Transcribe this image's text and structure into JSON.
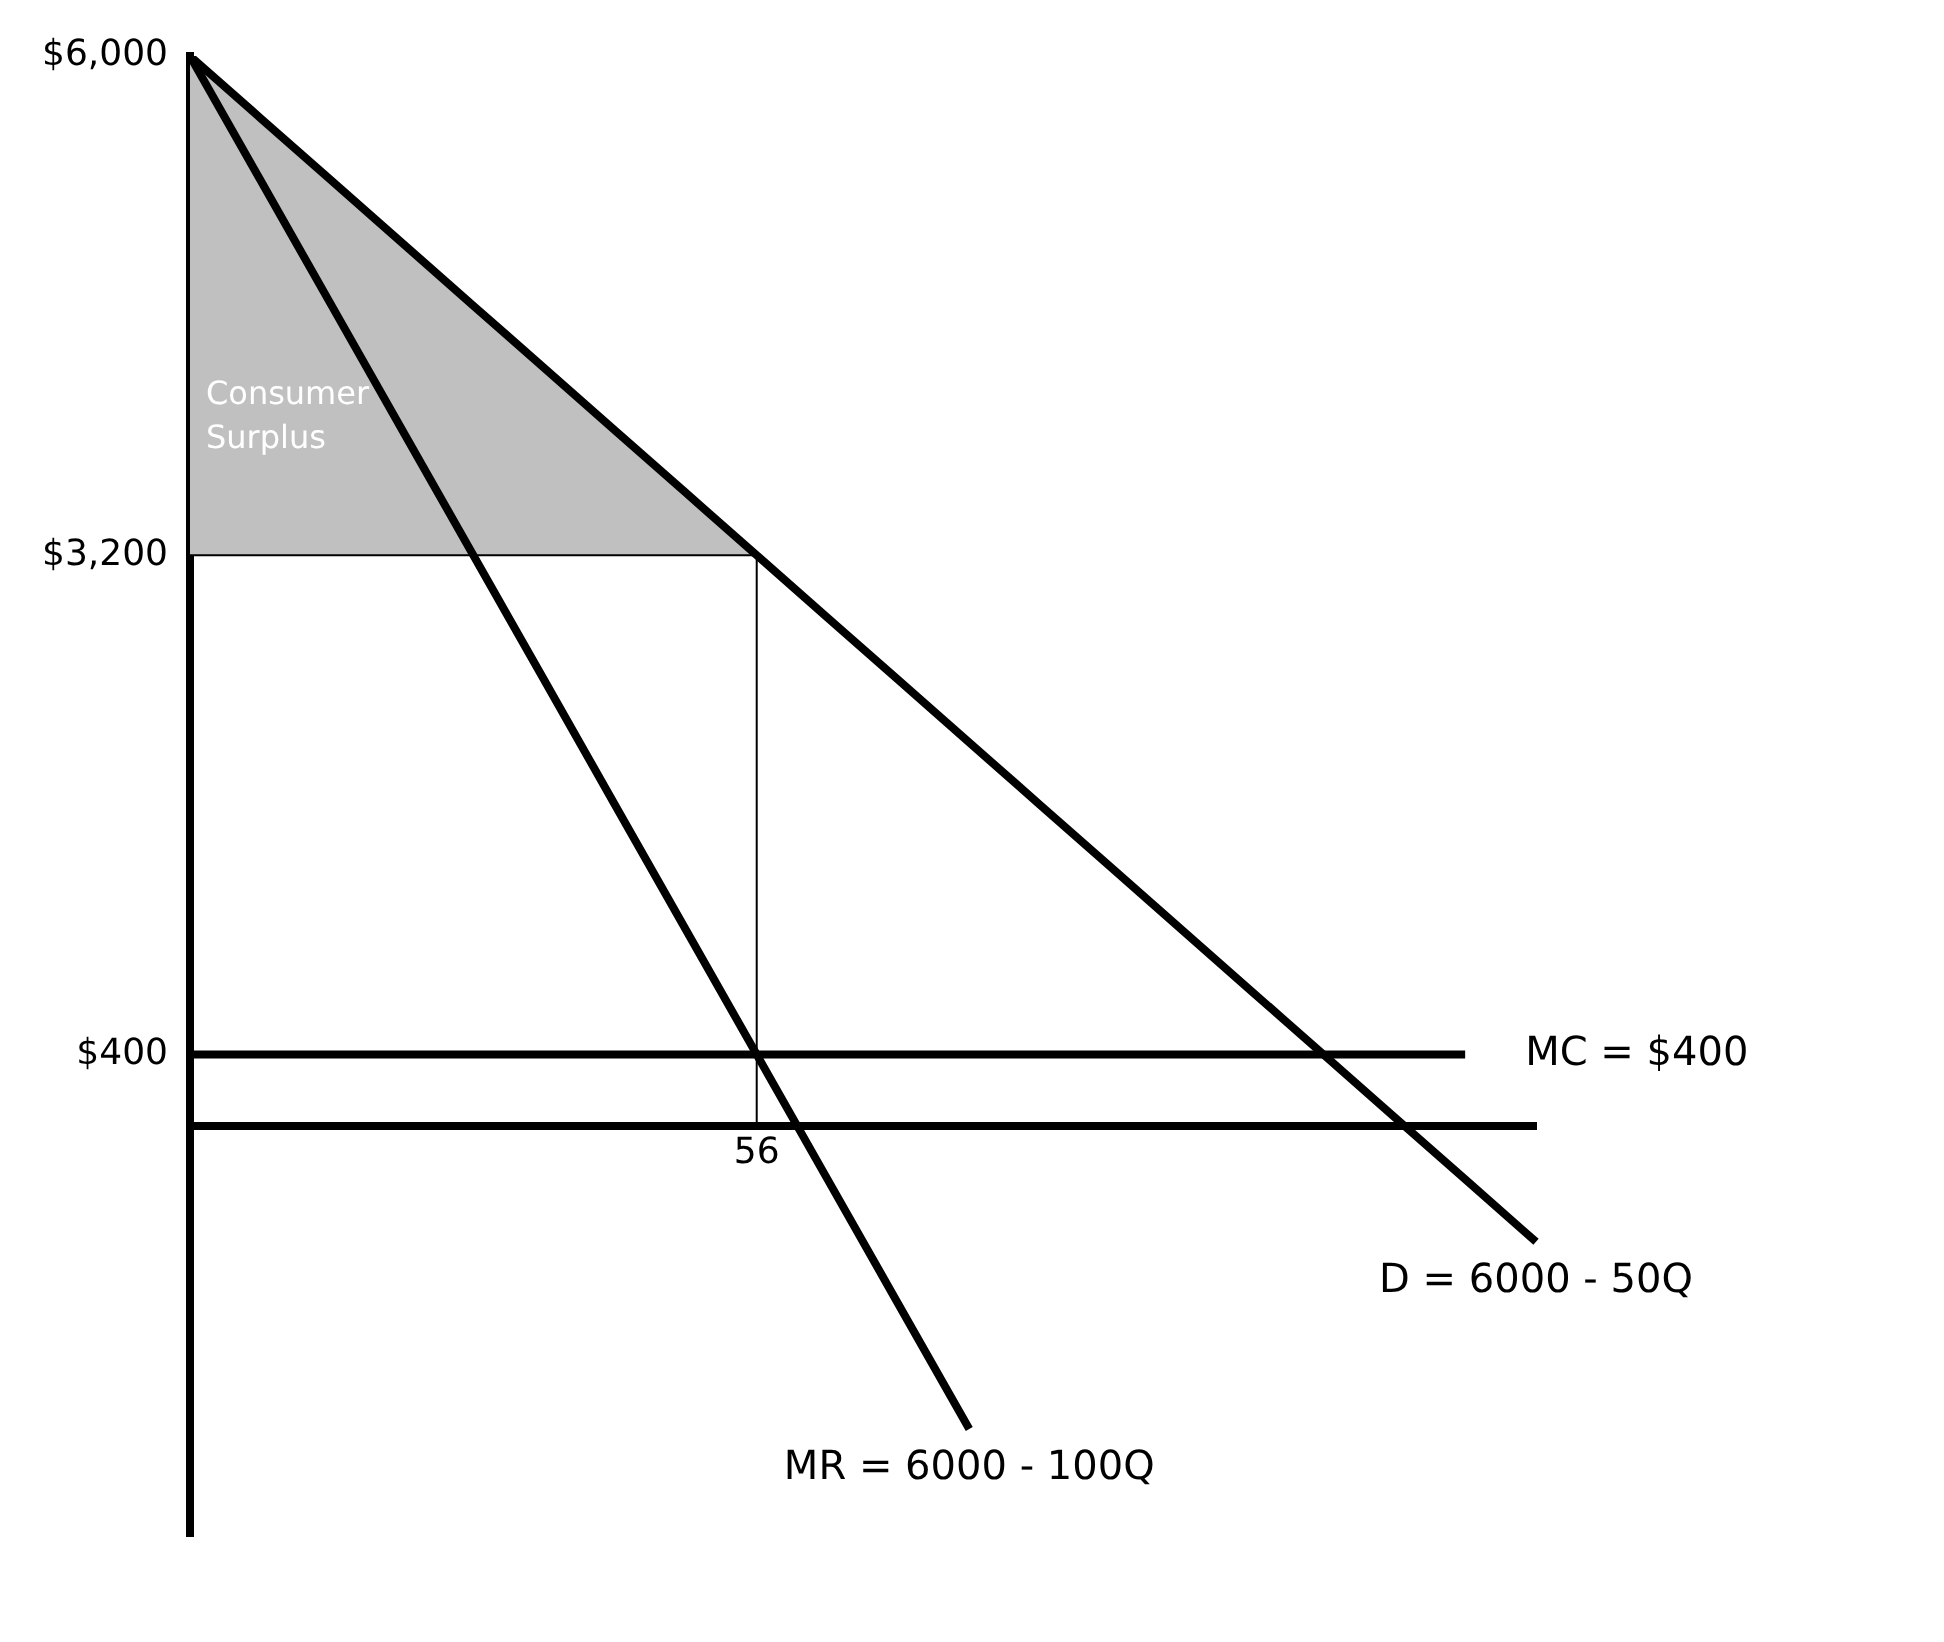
{
  "chart_data": {
    "type": "line",
    "ylim": [
      -2300,
      6000
    ],
    "categories": [
      null,
      null,
      null,
      null,
      null,
      null,
      null,
      null,
      "56",
      null,
      null,
      null,
      null,
      null,
      null,
      null,
      null,
      null,
      null,
      null
    ],
    "yticks": [
      {
        "value": 6000,
        "label": "$6,000"
      },
      {
        "value": 3200,
        "label": "$3,200"
      },
      {
        "value": 400,
        "label": "$400"
      }
    ],
    "ref_lines": [
      {
        "axis": "x",
        "value": "56",
        "color": "#000000"
      }
    ],
    "grid": false,
    "legend": false,
    "marker": "none",
    "series": [
      {
        "type": "line",
        "color": "#000000",
        "values": [
          3200,
          3200,
          3200,
          3200,
          3200,
          3200,
          3200,
          3200,
          3200,
          null,
          null,
          null,
          null,
          null,
          null,
          null,
          null,
          null,
          null,
          null
        ]
      },
      {
        "type": "area",
        "name": "Consumer Surplus",
        "color": "#c0c0c0",
        "values": [
          6000,
          5650,
          5300,
          4950,
          4600,
          4250,
          3900,
          3550,
          3200,
          null,
          null,
          null,
          null,
          null,
          null,
          null,
          null,
          null,
          null,
          null
        ]
      },
      {
        "type": "line",
        "name": "MC = $400",
        "color": "#000000",
        "values": [
          400,
          400,
          400,
          400,
          400,
          400,
          400,
          400,
          400,
          400,
          400,
          400,
          400,
          400,
          400,
          400,
          400,
          400,
          400,
          null
        ]
      },
      {
        "type": "line",
        "name": "MR = 6000 - 100Q",
        "color": "#000000",
        "values": [
          6000,
          5300,
          4600,
          3900,
          3200,
          2500,
          1800,
          1100,
          400,
          -300,
          -1000,
          -1700,
          null,
          null,
          null,
          null,
          null,
          null,
          null,
          null
        ]
      },
      {
        "type": "line",
        "name": "D = 6000 - 50Q",
        "color": "#000000",
        "values": [
          6000,
          5650,
          5300,
          4950,
          4600,
          4250,
          3900,
          3550,
          3200,
          2850,
          2500,
          2150,
          1800,
          1450,
          1100,
          750,
          400,
          50,
          -300,
          -650
        ]
      }
    ]
  }
}
